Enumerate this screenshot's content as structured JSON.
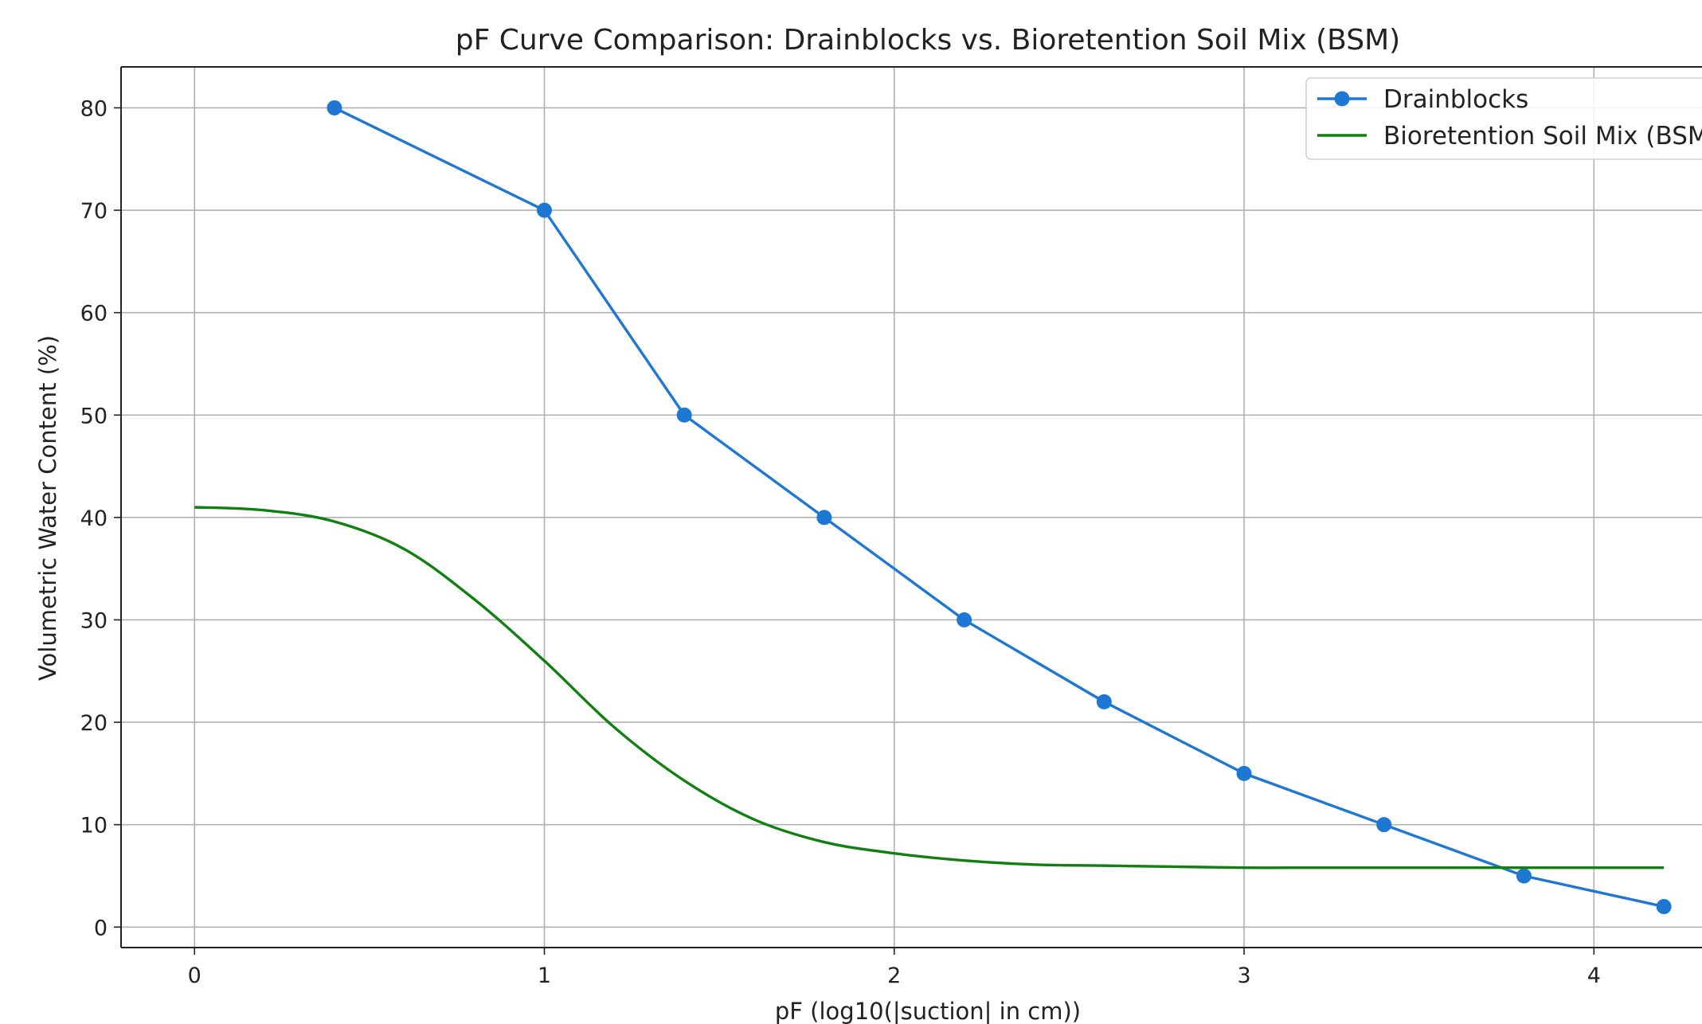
{
  "chart_data": {
    "type": "line",
    "title": "pF Curve Comparison: Drainblocks vs. Bioretention Soil Mix (BSM)",
    "xlabel": "pF (log10(|suction| in cm))",
    "ylabel": "Volumetric Water Content (%)",
    "xlim": [
      -0.21,
      4.4
    ],
    "ylim": [
      -2,
      84
    ],
    "xticks": [
      0,
      1,
      2,
      3,
      4
    ],
    "yticks": [
      0,
      10,
      20,
      30,
      40,
      50,
      60,
      70,
      80
    ],
    "xtick_labels": [
      "0",
      "1",
      "2",
      "3",
      "4"
    ],
    "ytick_labels": [
      "0",
      "10",
      "20",
      "30",
      "40",
      "50",
      "60",
      "70",
      "80"
    ],
    "grid": true,
    "legend": "top-right",
    "series": [
      {
        "name": "Drainblocks",
        "color": "#1f77d4",
        "marker": "circle",
        "x": [
          0.4,
          1.0,
          1.4,
          1.8,
          2.2,
          2.6,
          3.0,
          3.4,
          3.8,
          4.2
        ],
        "y": [
          80,
          70,
          50,
          40,
          30,
          22,
          15,
          10,
          5,
          2
        ]
      },
      {
        "name": "Bioretention Soil Mix (BSM)",
        "color": "#118011",
        "marker": "none",
        "x": [
          0.0,
          0.2,
          0.4,
          0.6,
          0.8,
          1.0,
          1.2,
          1.4,
          1.6,
          1.8,
          2.0,
          2.2,
          2.4,
          2.6,
          2.8,
          3.0,
          3.2,
          3.4,
          3.6,
          3.8,
          4.0,
          4.2
        ],
        "y": [
          41.0,
          40.7,
          39.6,
          36.9,
          32.0,
          26.0,
          19.5,
          14.3,
          10.5,
          8.3,
          7.2,
          6.5,
          6.1,
          6.0,
          5.9,
          5.8,
          5.8,
          5.8,
          5.8,
          5.8,
          5.8,
          5.8
        ]
      }
    ]
  }
}
